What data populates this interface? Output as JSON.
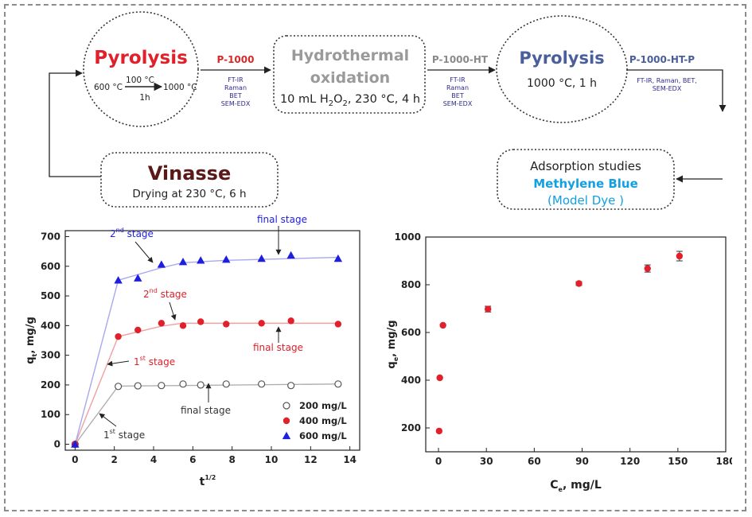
{
  "flow": {
    "pyrolysis1": {
      "title": "Pyrolysis",
      "temp_start": "600 °C",
      "temp_mid": "100 °C",
      "temp_end": "1000 °C",
      "time": "1h"
    },
    "p1000": {
      "label": "P-1000",
      "techniques": [
        "FT-IR",
        "Raman",
        "BET",
        "SEM-EDX"
      ]
    },
    "hydrothermal": {
      "title_line1": "Hydrothermal",
      "title_line2": "oxidation",
      "cond_prefix": "10 mL H",
      "cond_sub1": "2",
      "cond_mid": "O",
      "cond_sub2": "2",
      "cond_suffix": ", 230 °C, 4 h"
    },
    "p1000ht": {
      "label": "P-1000-HT",
      "techniques": [
        "FT-IR",
        "Raman",
        "BET",
        "SEM-EDX"
      ]
    },
    "pyrolysis2": {
      "title": "Pyrolysis",
      "cond": "1000 °C, 1 h"
    },
    "p1000htp": {
      "label": "P-1000-HT-P",
      "techniques_line1": "FT-IR, Raman, BET,",
      "techniques_line2": "SEM-EDX"
    },
    "vinasse": {
      "title": "Vinasse",
      "cond": "Drying at 230 °C, 6 h"
    },
    "adsorption": {
      "line1": "Adsorption studies",
      "line2": "Methylene Blue",
      "line3": "(Model Dye )"
    }
  },
  "colors": {
    "pyrolysis1": "#e0202a",
    "p1000": "#d42a2a",
    "hydro": "#9a9a9a",
    "p1000ht": "#8a8a8a",
    "pyrolysis2": "#4a5f9a",
    "p1000htp": "#4a5f9a",
    "techniques": "#2e2a8a",
    "vinasse": "#5a1818",
    "methylene": "#12a0e0",
    "series200": "#555555",
    "series400": "#e0202a",
    "series600": "#1e1ee0",
    "line200": "#b0b0b0",
    "line400": "#f0a0a0",
    "line600": "#a8a8f0"
  },
  "chart_data": [
    {
      "type": "scatter",
      "xlabel": "t",
      "xlabel_sup": "1/2",
      "ylabel": "q",
      "ylabel_sub": "t",
      "ylabel_unit": ",  mg/g",
      "xlim": [
        -0.5,
        14.5
      ],
      "ylim": [
        -20,
        720
      ],
      "xticks": [
        0,
        2,
        4,
        6,
        8,
        10,
        12,
        14
      ],
      "yticks": [
        0,
        100,
        200,
        300,
        400,
        500,
        600,
        700
      ],
      "legend_placement": "bottom-right",
      "series": [
        {
          "name": "200 mg/L",
          "marker": "open-circle",
          "x": [
            0,
            2.2,
            3.2,
            4.4,
            5.5,
            6.4,
            7.7,
            9.5,
            11.0,
            13.4
          ],
          "y": [
            0,
            195,
            197,
            198,
            203,
            200,
            203,
            203,
            198,
            203
          ],
          "line_x": [
            0,
            2.2,
            13.4
          ],
          "line_y": [
            0,
            196,
            203
          ]
        },
        {
          "name": "400 mg/L",
          "marker": "filled-circle",
          "x": [
            0,
            2.2,
            3.2,
            4.4,
            5.5,
            6.4,
            7.7,
            9.5,
            11.0,
            13.4
          ],
          "y": [
            0,
            363,
            385,
            408,
            400,
            413,
            405,
            408,
            416,
            405
          ],
          "line_x": [
            0,
            2.2,
            4.4,
            5.5,
            13.4
          ],
          "line_y": [
            0,
            363,
            398,
            408,
            408
          ]
        },
        {
          "name": "600 mg/L",
          "marker": "filled-triangle",
          "x": [
            0,
            2.2,
            3.2,
            4.4,
            5.5,
            6.4,
            7.7,
            9.5,
            11.0,
            13.4
          ],
          "y": [
            0,
            553,
            560,
            606,
            615,
            620,
            623,
            626,
            637,
            626
          ],
          "line_x": [
            0,
            2.2,
            4.4,
            5.5,
            7.7,
            13.4
          ],
          "line_y": [
            0,
            553,
            595,
            612,
            620,
            630
          ]
        }
      ],
      "annotations": [
        {
          "base": "2",
          "sup": "nd",
          "rest": "stage",
          "color": "#1e1ee0"
        },
        {
          "base": "final stage",
          "sup": "",
          "rest": "",
          "color": "#1e1ee0"
        },
        {
          "base": "2",
          "sup": "nd",
          "rest": "stage",
          "color": "#e0202a"
        },
        {
          "base": "final stage",
          "sup": "",
          "rest": "",
          "color": "#e0202a"
        },
        {
          "base": "1",
          "sup": "st",
          "rest": "stage",
          "color": "#e0202a"
        },
        {
          "base": "final stage",
          "sup": "",
          "rest": "",
          "color": "#333333"
        },
        {
          "base": "1",
          "sup": "st",
          "rest": "stage",
          "color": "#333333"
        }
      ]
    },
    {
      "type": "scatter",
      "xlabel": "C",
      "xlabel_sub": "e",
      "xlabel_unit": ",  mg/L",
      "ylabel": "q",
      "ylabel_sub": "e",
      "ylabel_unit": ",  mg/g",
      "xlim": [
        -8,
        180
      ],
      "ylim": [
        100,
        1000
      ],
      "xticks": [
        0,
        30,
        60,
        90,
        120,
        150,
        180
      ],
      "yticks": [
        200,
        400,
        600,
        800,
        1000
      ],
      "series": [
        {
          "name": "",
          "marker": "filled-circle",
          "x": [
            0.4,
            0.8,
            2.8,
            31,
            88,
            131,
            151
          ],
          "y": [
            187,
            410,
            630,
            698,
            805,
            868,
            920
          ],
          "err": [
            0,
            0,
            0,
            12,
            8,
            15,
            20
          ]
        }
      ]
    }
  ]
}
